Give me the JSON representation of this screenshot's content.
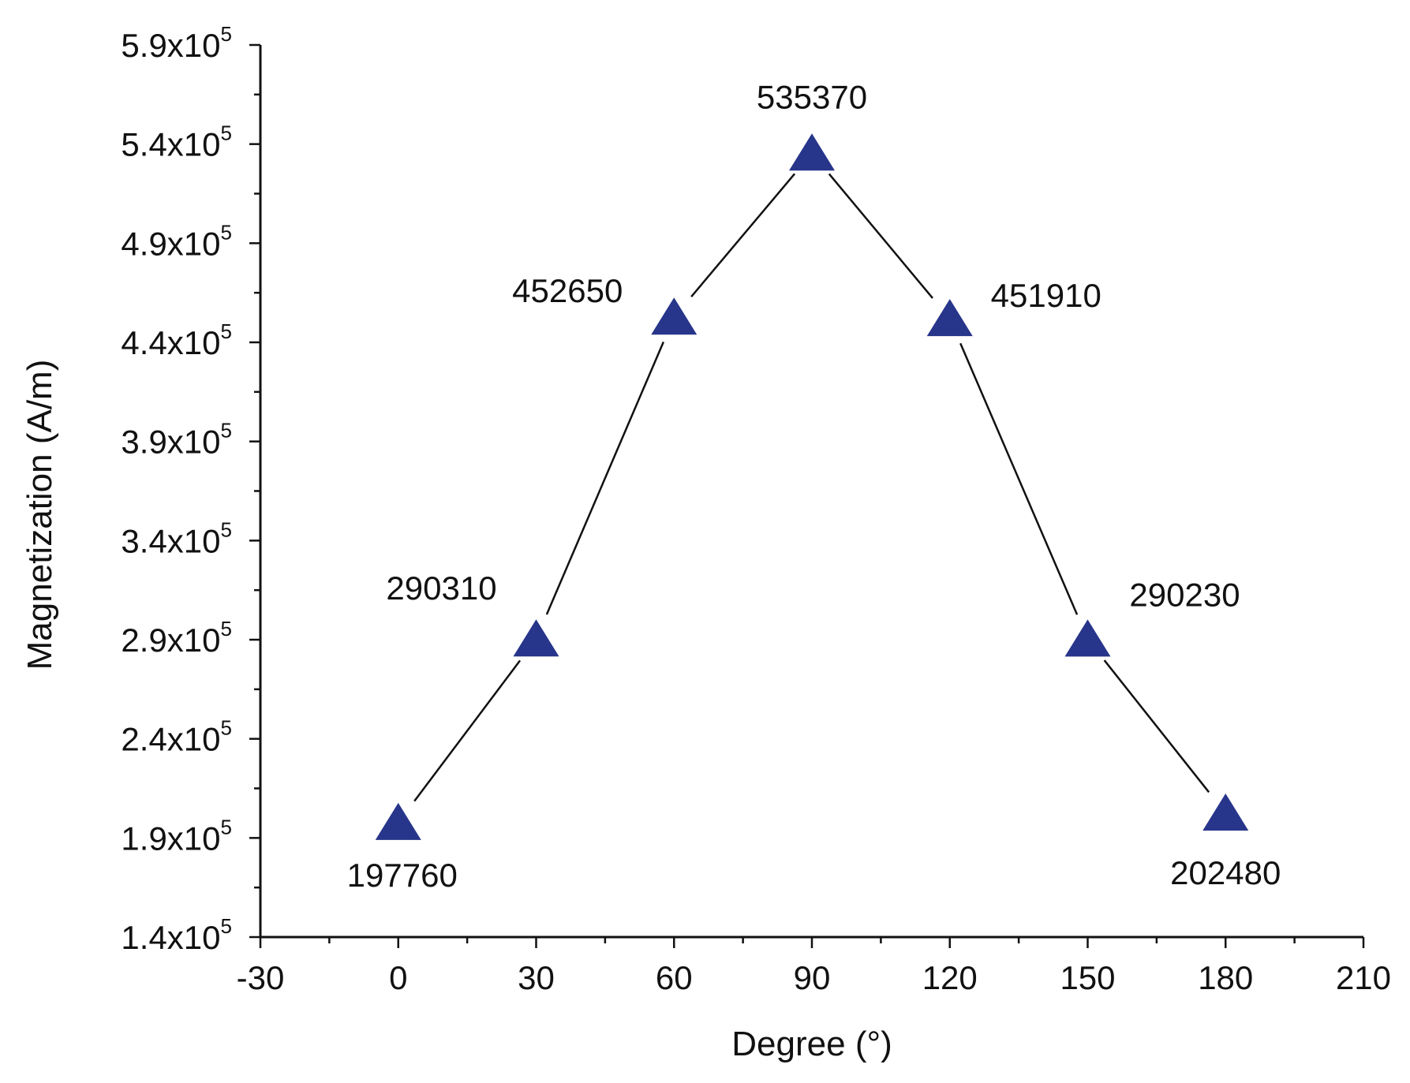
{
  "chart_data": {
    "type": "scatter",
    "title": "",
    "xlabel": "Degree (°)",
    "ylabel": "Magnetization (A/m)",
    "x": [
      0,
      30,
      60,
      90,
      120,
      150,
      180
    ],
    "y": [
      197760,
      290310,
      452650,
      535370,
      451910,
      290230,
      202480
    ],
    "point_labels": [
      "197760",
      "290310",
      "452650",
      "535370",
      "451910",
      "290230",
      "202480"
    ],
    "xlim": [
      -30,
      210
    ],
    "ylim": [
      140000,
      590000
    ],
    "x_ticks": [
      -30,
      0,
      30,
      60,
      90,
      120,
      150,
      180,
      210
    ],
    "x_tick_labels": [
      "-30",
      "0",
      "30",
      "60",
      "90",
      "120",
      "150",
      "180",
      "210"
    ],
    "y_ticks": [
      140000,
      190000,
      240000,
      290000,
      340000,
      390000,
      440000,
      490000,
      540000,
      590000
    ],
    "y_tick_labels": [
      {
        "mantissa": "1.4x10",
        "exp": "5"
      },
      {
        "mantissa": "1.9x10",
        "exp": "5"
      },
      {
        "mantissa": "2.4x10",
        "exp": "5"
      },
      {
        "mantissa": "2.9x10",
        "exp": "5"
      },
      {
        "mantissa": "3.4x10",
        "exp": "5"
      },
      {
        "mantissa": "3.9x10",
        "exp": "5"
      },
      {
        "mantissa": "4.4x10",
        "exp": "5"
      },
      {
        "mantissa": "4.9x10",
        "exp": "5"
      },
      {
        "mantissa": "5.4x10",
        "exp": "5"
      },
      {
        "mantissa": "5.9x10",
        "exp": "5"
      }
    ],
    "grid": false,
    "legend": "none",
    "marker": "triangle",
    "marker_color": "#27358a",
    "line_color": "#111111"
  }
}
